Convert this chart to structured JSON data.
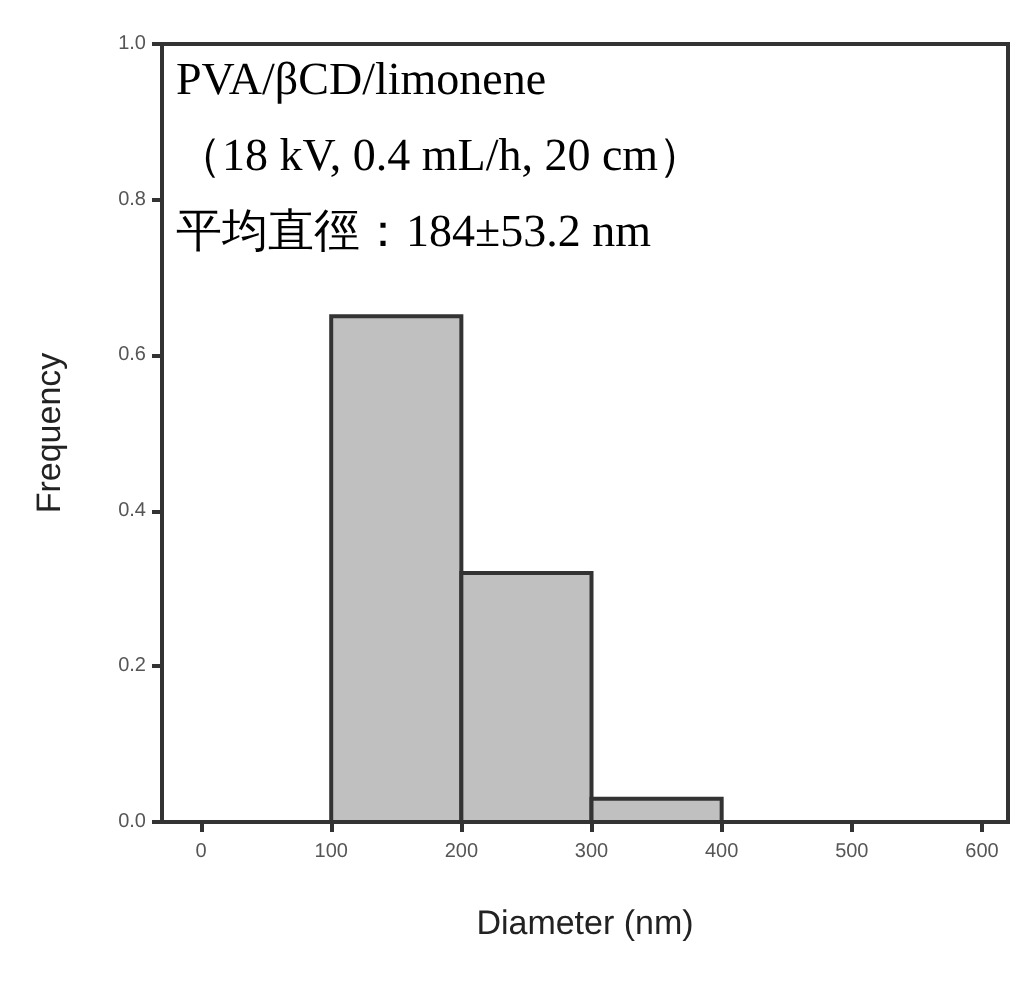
{
  "chart_data": {
    "type": "histogram",
    "xlabel": "Diameter (nm)",
    "ylabel": "Frequency",
    "bins": [
      100,
      200,
      300,
      400
    ],
    "values": [
      0.65,
      0.32,
      0.03
    ],
    "color": "#c0c0c0",
    "xlim": [
      -30,
      620
    ],
    "xticks": [
      0,
      100,
      200,
      300,
      400,
      500,
      600
    ],
    "ylim": [
      0,
      1.0
    ],
    "yticks": [
      {
        "value": 0,
        "label": "0.0"
      },
      {
        "value": 0.2,
        "label": "0.2"
      },
      {
        "value": 0.4,
        "label": "0.4"
      },
      {
        "value": 0.6,
        "label": "0.6"
      },
      {
        "value": 0.8,
        "label": "0.8"
      },
      {
        "value": 1.0,
        "label": "1.0"
      }
    ],
    "annotations": [
      "PVA/βCD/limonene",
      "（18 kV, 0.4 mL/h, 20 cm）",
      "平均直徑：184±53.2 nm"
    ],
    "grid": false
  }
}
